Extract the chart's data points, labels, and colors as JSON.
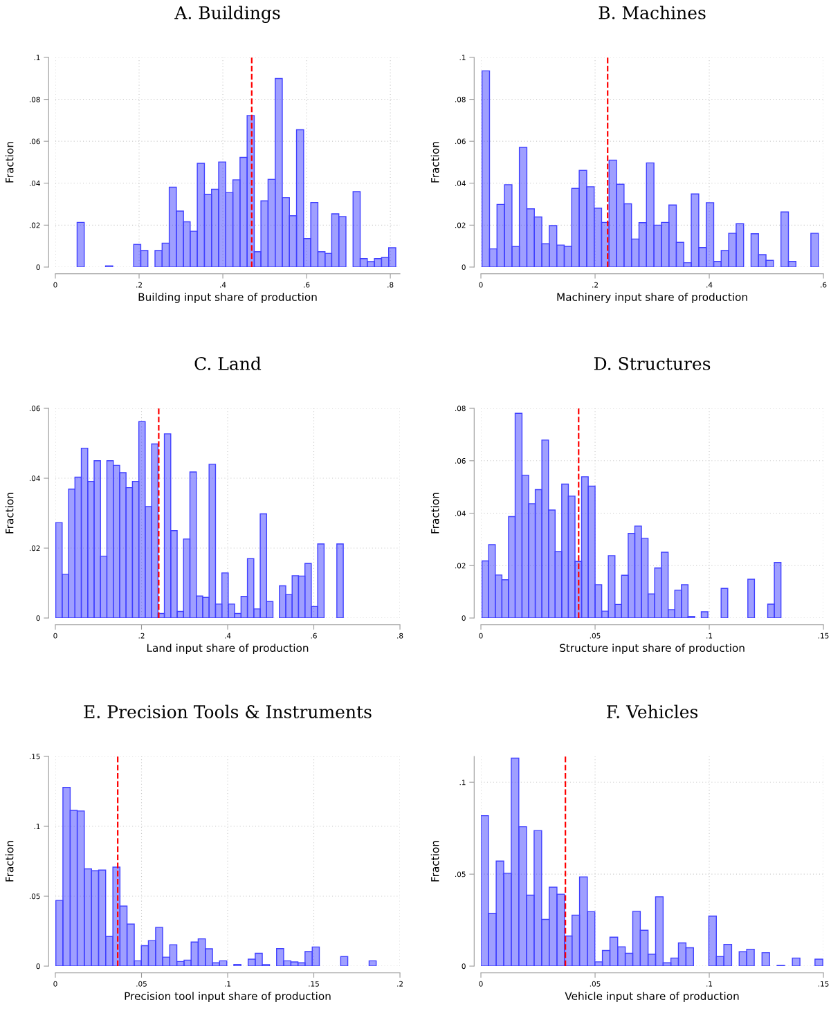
{
  "chart_data": [
    {
      "type": "histogram",
      "title": "A. Buildings",
      "xlabel": "Building input share of production",
      "ylabel": "Fraction",
      "color": "#4040ff",
      "grid": true,
      "bins": [
        0.052,
        0.069,
        0.12,
        0.137,
        0.187,
        0.204,
        0.221,
        0.238,
        0.255,
        0.272,
        0.289,
        0.306,
        0.322,
        0.339,
        0.356,
        0.373,
        0.39,
        0.407,
        0.424,
        0.441,
        0.458,
        0.475,
        0.491,
        0.508,
        0.525,
        0.542,
        0.559,
        0.576,
        0.593,
        0.61,
        0.627,
        0.644,
        0.66,
        0.677,
        0.694,
        0.711,
        0.728,
        0.745,
        0.762,
        0.779,
        0.796,
        0.813
      ],
      "values": [
        0.0213,
        0,
        0.0006,
        0,
        0.0108,
        0.0079,
        0,
        0.0079,
        0.0114,
        0.0381,
        0.0267,
        0.0216,
        0.0171,
        0.0495,
        0.0347,
        0.0371,
        0.0501,
        0.0355,
        0.0416,
        0.0523,
        0.0723,
        0.0073,
        0.0316,
        0.0418,
        0.0899,
        0.0331,
        0.0245,
        0.0655,
        0.0136,
        0.0308,
        0.0073,
        0.0065,
        0.0254,
        0.0241,
        0,
        0.036,
        0.004,
        0.0026,
        0.004,
        0.0046,
        0.0092
      ],
      "xlim": [
        0,
        0.823
      ],
      "ylim": [
        0,
        0.1
      ],
      "xticks": [
        0,
        {
          "value": 0.2,
          "label": ".2"
        },
        {
          "value": 0.4,
          "label": ".4"
        },
        {
          "value": 0.6,
          "label": ".6"
        },
        {
          "value": 0.8,
          "label": ".8"
        }
      ],
      "yticks": [
        0,
        {
          "value": 0.02,
          "label": ".02"
        },
        {
          "value": 0.04,
          "label": ".04"
        },
        {
          "value": 0.06,
          "label": ".06"
        },
        {
          "value": 0.08,
          "label": ".08"
        },
        {
          "value": 0.1,
          "label": ".1"
        }
      ],
      "ref_lines": [
        {
          "axis": "x",
          "value": 0.469,
          "color": "#ff0000",
          "line_style": "dashed"
        }
      ]
    },
    {
      "type": "histogram",
      "title": "B. Machines",
      "xlabel": "Machinery input share of production",
      "ylabel": "Fraction",
      "color": "#4040ff",
      "grid": true,
      "bins": [
        0.002,
        0.0151,
        0.0282,
        0.0413,
        0.0544,
        0.0674,
        0.0805,
        0.0936,
        0.1067,
        0.1198,
        0.1329,
        0.146,
        0.1591,
        0.1722,
        0.1853,
        0.1984,
        0.2114,
        0.2245,
        0.2376,
        0.2507,
        0.2638,
        0.2769,
        0.29,
        0.3031,
        0.3162,
        0.3293,
        0.3423,
        0.3554,
        0.3685,
        0.3816,
        0.3947,
        0.4078,
        0.4209,
        0.434,
        0.4471,
        0.4602,
        0.4732,
        0.4863,
        0.4994,
        0.5125,
        0.5256,
        0.5387,
        0.5518,
        0.578,
        0.5911
      ],
      "values": [
        0.0936,
        0.0087,
        0.0299,
        0.0393,
        0.0098,
        0.0571,
        0.0278,
        0.0239,
        0.0111,
        0.0198,
        0.0105,
        0.0099,
        0.0375,
        0.0461,
        0.0383,
        0.0281,
        0.0213,
        0.051,
        0.0395,
        0.0302,
        0.0134,
        0.0212,
        0.0497,
        0.02,
        0.0213,
        0.0296,
        0.0118,
        0.0021,
        0.0349,
        0.0093,
        0.0307,
        0.0027,
        0.0079,
        0.0161,
        0.0207,
        0,
        0.0159,
        0.0059,
        0.0032,
        0,
        0.0263,
        0.0027,
        0,
        0.0161
      ],
      "xlim": [
        0,
        0.6
      ],
      "ylim": [
        0,
        0.1
      ],
      "xticks": [
        0,
        {
          "value": 0.2,
          "label": ".2"
        },
        {
          "value": 0.4,
          "label": ".4"
        },
        {
          "value": 0.6,
          "label": ".6"
        }
      ],
      "yticks": [
        0,
        {
          "value": 0.02,
          "label": ".02"
        },
        {
          "value": 0.04,
          "label": ".04"
        },
        {
          "value": 0.06,
          "label": ".06"
        },
        {
          "value": 0.08,
          "label": ".08"
        },
        {
          "value": 0.1,
          "label": ".1"
        }
      ],
      "ref_lines": [
        {
          "axis": "x",
          "value": 0.222,
          "color": "#ff0000",
          "line_style": "dashed"
        }
      ]
    },
    {
      "type": "histogram",
      "title": "C. Land",
      "xlabel": "Land input share of production",
      "ylabel": "Fraction",
      "color": "#4040ff",
      "grid": true,
      "bins": [
        0.001,
        0.0158,
        0.0307,
        0.0455,
        0.0603,
        0.0752,
        0.09,
        0.1048,
        0.1196,
        0.1345,
        0.1493,
        0.1641,
        0.179,
        0.1938,
        0.2086,
        0.2235,
        0.2383,
        0.2531,
        0.2679,
        0.2828,
        0.2976,
        0.3124,
        0.3273,
        0.3421,
        0.3569,
        0.3718,
        0.3866,
        0.4014,
        0.4162,
        0.4311,
        0.4459,
        0.4607,
        0.4756,
        0.4904,
        0.5052,
        0.5201,
        0.5349,
        0.5497,
        0.5645,
        0.5794,
        0.5942,
        0.609,
        0.6239,
        0.6535,
        0.6684
      ],
      "values": [
        0.0273,
        0.0125,
        0.0369,
        0.0403,
        0.0486,
        0.0391,
        0.045,
        0.0177,
        0.045,
        0.0437,
        0.0416,
        0.0373,
        0.0391,
        0.0562,
        0.0319,
        0.0498,
        0.0013,
        0.0527,
        0.025,
        0.0019,
        0.0226,
        0.0418,
        0.0063,
        0.0059,
        0.044,
        0.004,
        0.0129,
        0.004,
        0.0013,
        0.0062,
        0.017,
        0.0026,
        0.0298,
        0.0047,
        0,
        0.0092,
        0.0067,
        0.0121,
        0.012,
        0.0156,
        0.0033,
        0.0212,
        0,
        0.0212
      ],
      "xlim": [
        0,
        0.8
      ],
      "ylim": [
        0,
        0.06
      ],
      "xticks": [
        0,
        {
          "value": 0.2,
          "label": ".2"
        },
        {
          "value": 0.4,
          "label": ".4"
        },
        {
          "value": 0.6,
          "label": ".6"
        },
        {
          "value": 0.8,
          "label": ".8"
        }
      ],
      "yticks": [
        0,
        {
          "value": 0.02,
          "label": ".02"
        },
        {
          "value": 0.04,
          "label": ".04"
        },
        {
          "value": 0.06,
          "label": ".06"
        }
      ],
      "ref_lines": [
        {
          "axis": "x",
          "value": 0.24,
          "color": "#ff0000",
          "line_style": "dashed"
        }
      ]
    },
    {
      "type": "histogram",
      "title": "D. Structures",
      "xlabel": "Structure input share of production",
      "ylabel": "Fraction",
      "color": "#4040ff",
      "grid": true,
      "bins": [
        0.0005,
        0.0034,
        0.0063,
        0.0092,
        0.0121,
        0.015,
        0.018,
        0.0209,
        0.0238,
        0.0267,
        0.0296,
        0.0325,
        0.0354,
        0.0383,
        0.0412,
        0.0441,
        0.047,
        0.05,
        0.0529,
        0.0558,
        0.0587,
        0.0616,
        0.0645,
        0.0674,
        0.0703,
        0.0732,
        0.0761,
        0.079,
        0.082,
        0.0849,
        0.0878,
        0.0907,
        0.0936,
        0.0965,
        0.0994,
        0.1052,
        0.1081,
        0.1169,
        0.1198,
        0.1256,
        0.1285,
        0.1314
      ],
      "values": [
        0.0218,
        0.028,
        0.0164,
        0.0146,
        0.0387,
        0.0781,
        0.0545,
        0.0436,
        0.049,
        0.0679,
        0.0412,
        0.0254,
        0.0511,
        0.0465,
        0.0216,
        0.0539,
        0.0503,
        0.0127,
        0.0026,
        0.0238,
        0.0052,
        0.0163,
        0.0323,
        0.0351,
        0.0304,
        0.0092,
        0.0191,
        0.0251,
        0.0032,
        0.0106,
        0.0127,
        0.0006,
        0,
        0.0024,
        0,
        0.0113,
        0,
        0.0148,
        0,
        0.0053,
        0.0212
      ],
      "xlim": [
        0,
        0.15
      ],
      "ylim": [
        0,
        0.08
      ],
      "xticks": [
        0,
        {
          "value": 0.05,
          "label": ".05"
        },
        {
          "value": 0.1,
          "label": ".1"
        },
        {
          "value": 0.15,
          "label": ".15"
        }
      ],
      "yticks": [
        0,
        {
          "value": 0.02,
          "label": ".02"
        },
        {
          "value": 0.04,
          "label": ".04"
        },
        {
          "value": 0.06,
          "label": ".06"
        },
        {
          "value": 0.08,
          "label": ".08"
        }
      ],
      "ref_lines": [
        {
          "axis": "x",
          "value": 0.0428,
          "color": "#ff0000",
          "line_style": "dashed"
        }
      ]
    },
    {
      "type": "histogram",
      "title": "E. Precision Tools & Instruments",
      "xlabel": "Precision tool input share of production",
      "ylabel": "Fraction",
      "color": "#4040ff",
      "grid": true,
      "bins": [
        0.0003,
        0.0044,
        0.0086,
        0.0127,
        0.0168,
        0.021,
        0.0251,
        0.0292,
        0.0334,
        0.0375,
        0.0416,
        0.0458,
        0.0499,
        0.054,
        0.0582,
        0.0623,
        0.0664,
        0.0705,
        0.0747,
        0.0788,
        0.0829,
        0.0871,
        0.0912,
        0.0953,
        0.0995,
        0.1036,
        0.1077,
        0.1119,
        0.116,
        0.1201,
        0.1243,
        0.1284,
        0.1325,
        0.1367,
        0.1408,
        0.1449,
        0.1491,
        0.1532,
        0.1656,
        0.1697,
        0.1821,
        0.1862
      ],
      "values": [
        0.047,
        0.1279,
        0.1114,
        0.111,
        0.0696,
        0.0682,
        0.0687,
        0.0212,
        0.0708,
        0.043,
        0.0301,
        0.0038,
        0.0146,
        0.0183,
        0.0277,
        0.0064,
        0.0153,
        0.0033,
        0.0043,
        0.0172,
        0.0195,
        0.0124,
        0.0024,
        0.0038,
        0,
        0.0012,
        0,
        0.005,
        0.0092,
        0.001,
        0,
        0.0125,
        0.0038,
        0.003,
        0.0024,
        0.0104,
        0.0137,
        0,
        0.0068,
        0,
        0.0038
      ],
      "xlim": [
        0,
        0.2
      ],
      "ylim": [
        0,
        0.15
      ],
      "xticks": [
        0,
        {
          "value": 0.05,
          "label": ".05"
        },
        {
          "value": 0.1,
          "label": ".1"
        },
        {
          "value": 0.15,
          "label": ".15"
        },
        {
          "value": 0.2,
          "label": ".2"
        }
      ],
      "yticks": [
        0,
        {
          "value": 0.05,
          "label": ".05"
        },
        {
          "value": 0.1,
          "label": ".1"
        },
        {
          "value": 0.15,
          "label": ".15"
        }
      ],
      "ref_lines": [
        {
          "axis": "x",
          "value": 0.0362,
          "color": "#ff0000",
          "line_style": "dashed"
        }
      ]
    },
    {
      "type": "histogram",
      "title": "F. Vehicles",
      "xlabel": "Vehicle input share of production",
      "ylabel": "Fraction",
      "color": "#4040ff",
      "grid": true,
      "bins": [
        0,
        0.0033,
        0.0067,
        0.01,
        0.0133,
        0.0166,
        0.02,
        0.0233,
        0.0266,
        0.0299,
        0.0333,
        0.0366,
        0.0399,
        0.0432,
        0.0466,
        0.0499,
        0.0532,
        0.0565,
        0.0599,
        0.0632,
        0.0665,
        0.0698,
        0.0732,
        0.0765,
        0.0798,
        0.0832,
        0.0865,
        0.0898,
        0.0931,
        0.0998,
        0.1031,
        0.1064,
        0.1098,
        0.1131,
        0.1164,
        0.1197,
        0.1231,
        0.1264,
        0.1297,
        0.133,
        0.1364,
        0.1397,
        0.1463,
        0.1497
      ],
      "values": [
        0.0818,
        0.0287,
        0.0571,
        0.0505,
        0.1131,
        0.0758,
        0.0386,
        0.0737,
        0.0254,
        0.0429,
        0.0391,
        0.0164,
        0.0277,
        0.0485,
        0.0296,
        0.0023,
        0.0085,
        0.0157,
        0.0105,
        0.007,
        0.0298,
        0.0195,
        0.0065,
        0.0377,
        0.0018,
        0.0044,
        0.0126,
        0.01,
        0,
        0.0272,
        0.0052,
        0.0118,
        0,
        0.0078,
        0.0092,
        0,
        0.0073,
        0,
        0.0004,
        0,
        0.0044,
        0,
        0.0038
      ],
      "xlim": [
        0,
        0.15
      ],
      "ylim": [
        0,
        0.114
      ],
      "xticks": [
        0,
        {
          "value": 0.05,
          "label": ".05"
        },
        {
          "value": 0.1,
          "label": ".1"
        },
        {
          "value": 0.15,
          "label": ".15"
        }
      ],
      "yticks": [
        0,
        {
          "value": 0.05,
          "label": ".05"
        },
        {
          "value": 0.1,
          "label": ".1"
        }
      ],
      "ref_lines": [
        {
          "axis": "x",
          "value": 0.037,
          "color": "#ff0000",
          "line_style": "dashed"
        }
      ]
    }
  ]
}
